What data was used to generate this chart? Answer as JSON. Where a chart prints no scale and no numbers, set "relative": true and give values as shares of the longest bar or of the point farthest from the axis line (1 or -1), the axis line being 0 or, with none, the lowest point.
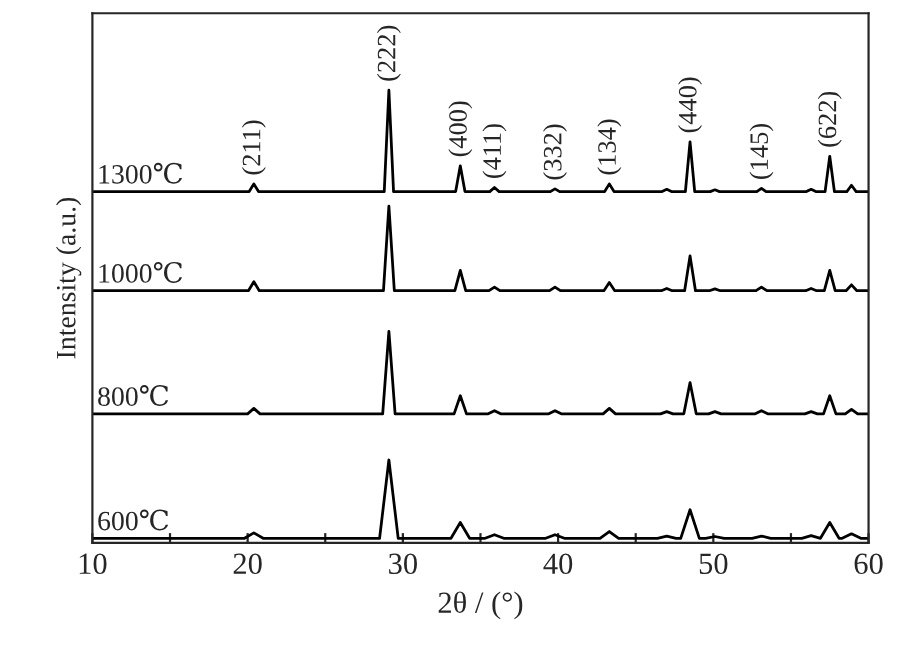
{
  "chart_data": {
    "type": "line",
    "relative": true,
    "xlabel": "2θ / (°)",
    "ylabel": "Intensity (a.u.)",
    "xlim": [
      10,
      60
    ],
    "xticks": [
      10,
      {
        "value": 15,
        "label": null
      },
      20,
      {
        "value": 25,
        "label": null
      },
      30,
      {
        "value": 35,
        "label": null
      },
      40,
      {
        "value": 45,
        "label": null
      },
      50,
      {
        "value": 55,
        "label": null
      },
      60
    ],
    "tick_labels": "x",
    "grid": false,
    "legend": false,
    "marker": "none",
    "line_style": "solid",
    "series": [
      {
        "name": "1300℃",
        "color": "#000000",
        "x": [
          10,
          20.1,
          20.4,
          20.7,
          28.8,
          29.1,
          29.4,
          33.4,
          33.7,
          34.0,
          35.6,
          35.9,
          36.2,
          39.5,
          39.8,
          40.1,
          43.0,
          43.3,
          43.6,
          46.7,
          47.0,
          47.3,
          48.2,
          48.5,
          48.8,
          49.8,
          50.1,
          50.4,
          52.8,
          53.1,
          53.4,
          56.0,
          56.3,
          56.6,
          57.2,
          57.5,
          57.8,
          58.6,
          58.9,
          59.2,
          60
        ],
        "values": [
          0.776,
          0.776,
          0.793,
          0.776,
          0.776,
          1.0,
          0.776,
          0.776,
          0.833,
          0.776,
          0.776,
          0.785,
          0.776,
          0.776,
          0.782,
          0.776,
          0.776,
          0.793,
          0.776,
          0.776,
          0.781,
          0.776,
          0.776,
          0.886,
          0.776,
          0.776,
          0.78,
          0.776,
          0.776,
          0.783,
          0.776,
          0.776,
          0.781,
          0.776,
          0.776,
          0.854,
          0.776,
          0.776,
          0.79,
          0.776,
          0.776
        ]
      },
      {
        "name": "1000℃",
        "color": "#000000",
        "x": [
          10,
          20.05,
          20.4,
          20.75,
          28.75,
          29.1,
          29.45,
          33.35,
          33.7,
          34.05,
          35.55,
          35.9,
          36.25,
          39.45,
          39.8,
          40.15,
          42.95,
          43.3,
          43.65,
          46.65,
          47.0,
          47.35,
          48.15,
          48.5,
          48.85,
          49.75,
          50.1,
          50.45,
          52.75,
          53.1,
          53.45,
          55.95,
          56.3,
          56.65,
          57.15,
          57.5,
          57.85,
          58.55,
          58.9,
          59.25,
          60
        ],
        "values": [
          0.557,
          0.557,
          0.577,
          0.557,
          0.557,
          0.744,
          0.557,
          0.557,
          0.602,
          0.557,
          0.557,
          0.565,
          0.557,
          0.557,
          0.565,
          0.557,
          0.557,
          0.575,
          0.557,
          0.557,
          0.562,
          0.557,
          0.557,
          0.634,
          0.557,
          0.557,
          0.561,
          0.557,
          0.557,
          0.565,
          0.557,
          0.557,
          0.562,
          0.557,
          0.557,
          0.602,
          0.557,
          0.557,
          0.57,
          0.557,
          0.557
        ]
      },
      {
        "name": "800℃",
        "color": "#000000",
        "x": [
          10,
          20.0,
          20.4,
          20.8,
          28.7,
          29.1,
          29.5,
          33.3,
          33.7,
          34.1,
          35.5,
          35.9,
          36.3,
          39.4,
          39.8,
          40.2,
          42.9,
          43.3,
          43.7,
          46.6,
          47.0,
          47.4,
          48.1,
          48.5,
          48.9,
          49.7,
          50.1,
          50.5,
          52.7,
          53.1,
          53.5,
          55.9,
          56.3,
          56.7,
          57.1,
          57.5,
          57.9,
          58.5,
          58.9,
          59.3,
          60
        ],
        "values": [
          0.285,
          0.285,
          0.297,
          0.285,
          0.285,
          0.467,
          0.285,
          0.285,
          0.325,
          0.285,
          0.285,
          0.292,
          0.285,
          0.285,
          0.292,
          0.285,
          0.285,
          0.297,
          0.285,
          0.285,
          0.29,
          0.285,
          0.285,
          0.354,
          0.285,
          0.285,
          0.29,
          0.285,
          0.285,
          0.292,
          0.285,
          0.285,
          0.29,
          0.285,
          0.285,
          0.325,
          0.285,
          0.285,
          0.295,
          0.285,
          0.285
        ]
      },
      {
        "name": "600℃",
        "color": "#000000",
        "x": [
          10,
          19.8,
          20.4,
          21.0,
          28.5,
          29.1,
          29.7,
          33.1,
          33.7,
          34.3,
          35.3,
          35.9,
          36.5,
          39.2,
          39.8,
          40.4,
          42.7,
          43.3,
          43.9,
          46.4,
          47.0,
          47.6,
          47.9,
          48.5,
          49.1,
          49.5,
          50.1,
          50.7,
          52.5,
          53.1,
          53.7,
          55.7,
          56.3,
          56.9,
          56.9,
          57.5,
          58.1,
          58.3,
          58.9,
          59.5,
          60
        ],
        "values": [
          0.01,
          0.01,
          0.022,
          0.01,
          0.01,
          0.183,
          0.01,
          0.01,
          0.045,
          0.01,
          0.01,
          0.018,
          0.01,
          0.01,
          0.018,
          0.01,
          0.01,
          0.025,
          0.01,
          0.01,
          0.015,
          0.01,
          0.01,
          0.073,
          0.01,
          0.01,
          0.014,
          0.01,
          0.01,
          0.015,
          0.01,
          0.01,
          0.016,
          0.01,
          0.01,
          0.045,
          0.01,
          0.01,
          0.02,
          0.01,
          0.01
        ]
      }
    ],
    "annotations": [
      {
        "text": "(211)",
        "x": 20.4,
        "y": 0.793
      },
      {
        "text": "(222)",
        "x": 29.1,
        "y": 1.0
      },
      {
        "text": "(400)",
        "x": 33.7,
        "y": 0.833
      },
      {
        "text": "(411)",
        "x": 35.9,
        "y": 0.785
      },
      {
        "text": "(332)",
        "x": 39.8,
        "y": 0.782
      },
      {
        "text": "(134)",
        "x": 43.3,
        "y": 0.793
      },
      {
        "text": "(440)",
        "x": 48.5,
        "y": 0.886
      },
      {
        "text": "(145)",
        "x": 53.1,
        "y": 0.783
      },
      {
        "text": "(622)",
        "x": 57.5,
        "y": 0.854
      }
    ]
  }
}
